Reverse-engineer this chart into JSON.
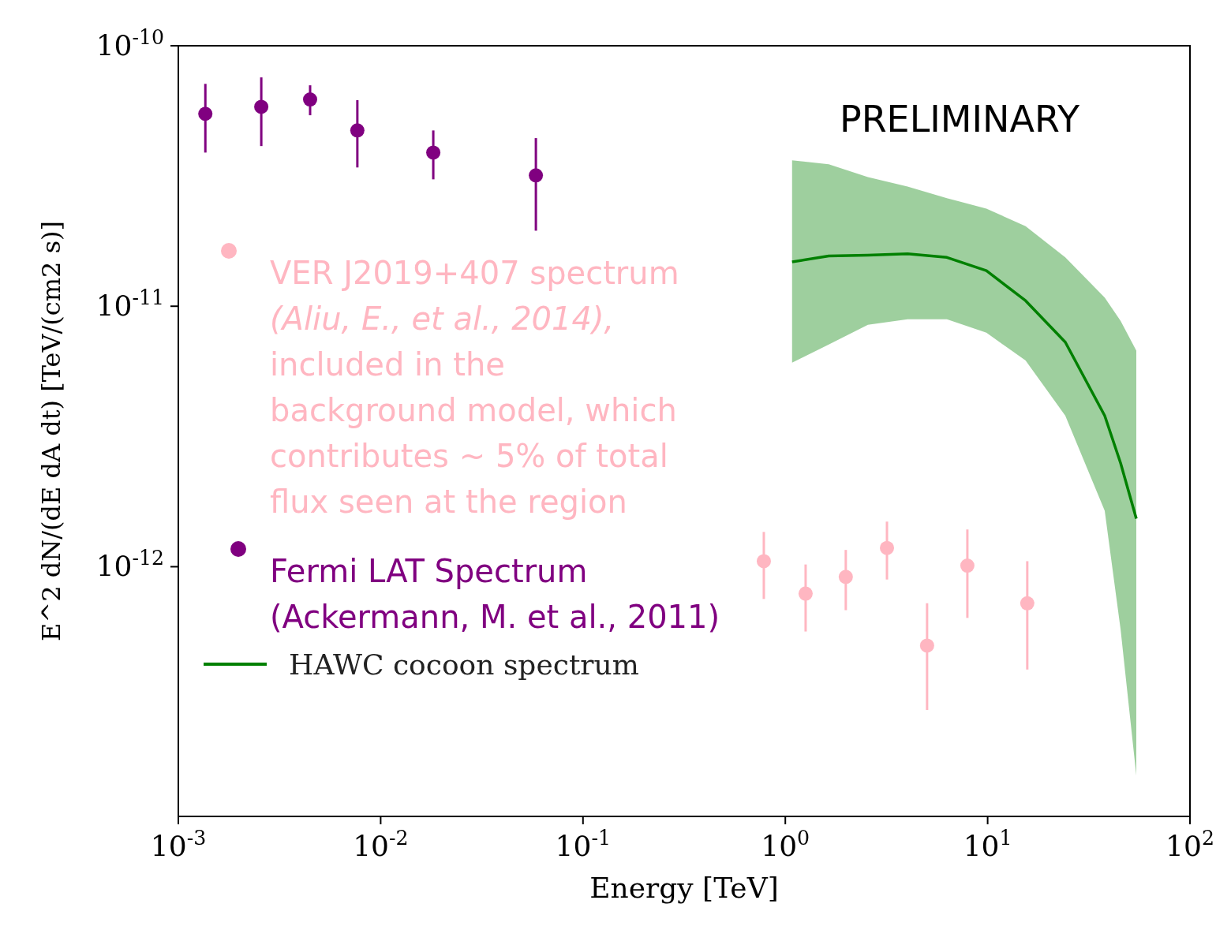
{
  "chart_data": {
    "type": "scatter",
    "xlabel": "Energy [TeV]",
    "ylabel": "E^2 dN/(dE dA dt) [TeV/(cm2 s)]",
    "log": "xy",
    "grid": false,
    "legend": "left",
    "xlim": [
      0.001,
      100
    ],
    "ylim": [
      1.1e-13,
      1e-10
    ],
    "xticks": [
      {
        "value": 0.001,
        "label": "10$^{-3}$"
      },
      {
        "value": 0.01,
        "label": "10$^{-2}$"
      },
      {
        "value": 0.1,
        "label": "10$^{-1}$"
      },
      {
        "value": 1,
        "label": "10$^{0}$"
      },
      {
        "value": 10,
        "label": "10$^{1}$"
      },
      {
        "value": 100,
        "label": "10$^{2}$"
      }
    ],
    "yticks": [
      {
        "value": 1e-12,
        "label": "10$^{-12}$"
      },
      {
        "value": 1e-11,
        "label": "10$^{-11}$"
      },
      {
        "value": 1e-10,
        "label": "10$^{-10}$"
      }
    ],
    "annotations": [
      "PRELIMINARY"
    ],
    "series": [
      {
        "name": "VER J2019+407 spectrum\n(Aliu, E., et al., 2014),\nincluded  in the\nbackground model, which\ncontributes ~ 5% of total\nflux seen at the region",
        "marker": "circle",
        "color": "#ffb6c1",
        "x": [
          0.783,
          1.26,
          1.99,
          3.18,
          5.02,
          7.94,
          15.7
        ],
        "values": [
          1.05e-12,
          7.88e-13,
          9.14e-13,
          1.18e-12,
          4.98e-13,
          1.01e-12,
          7.24e-13
        ],
        "errors": [
          [
            7.52e-13,
            1.36e-12
          ],
          [
            5.64e-13,
            1.02e-12
          ],
          [
            6.81e-13,
            1.16e-12
          ],
          [
            8.93e-13,
            1.49e-12
          ],
          [
            2.82e-13,
            7.24e-13
          ],
          [
            6.36e-13,
            1.39e-12
          ],
          [
            4.03e-13,
            1.05e-12
          ]
        ]
      },
      {
        "name": "Fermi LAT Spectrum\n(Ackermann, M. et al., 2011)",
        "marker": "circle",
        "color": "#800080",
        "x": [
          0.00136,
          0.00257,
          0.00448,
          0.00767,
          0.0182,
          0.0585
        ],
        "values": [
          5.48e-11,
          5.83e-11,
          6.22e-11,
          4.73e-11,
          3.89e-11,
          3.18e-11
        ],
        "errors": [
          [
            3.89e-11,
            7.14e-11
          ],
          [
            4.12e-11,
            7.56e-11
          ],
          [
            5.41e-11,
            7.05e-11
          ],
          [
            3.41e-11,
            6.18e-11
          ],
          [
            3.07e-11,
            4.73e-11
          ],
          [
            1.95e-11,
            4.42e-11
          ]
        ]
      },
      {
        "name": "HAWC cocoon spectrum",
        "type": "line",
        "color": "#008000",
        "x": [
          1.08,
          1.64,
          2.56,
          4.02,
          6.29,
          9.86,
          15.4,
          24.2,
          37.9,
          45.4,
          54.3
        ],
        "values": [
          1.48e-11,
          1.56e-11,
          1.57e-11,
          1.59e-11,
          1.54e-11,
          1.37e-11,
          1.05e-11,
          7.28e-12,
          3.8e-12,
          2.5e-12,
          1.53e-12
        ],
        "upper": [
          3.63e-11,
          3.51e-11,
          3.13e-11,
          2.88e-11,
          2.6e-11,
          2.37e-11,
          2.03e-11,
          1.54e-11,
          1.08e-11,
          8.79e-12,
          6.75e-12
        ],
        "lower": [
          6.07e-12,
          7.13e-12,
          8.49e-12,
          8.91e-12,
          8.91e-12,
          7.91e-12,
          6.19e-12,
          3.8e-12,
          1.64e-12,
          5.75e-13,
          1.58e-13
        ]
      }
    ]
  }
}
